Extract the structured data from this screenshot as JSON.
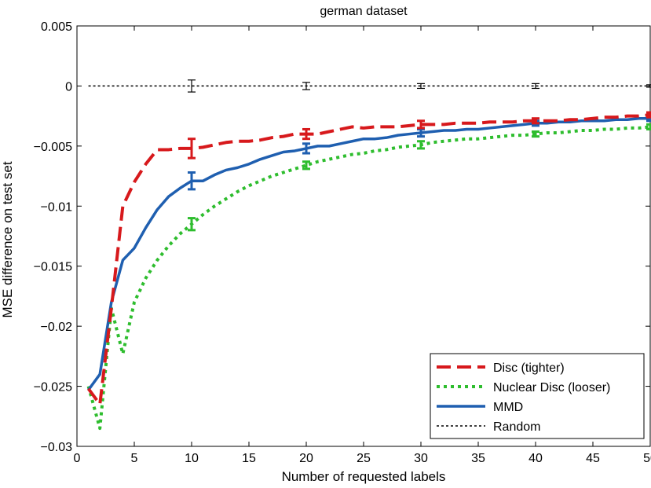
{
  "chart_data": {
    "type": "line",
    "title": "german dataset",
    "xlabel": "Number of requested labels",
    "ylabel": "MSE difference on test set",
    "xlim": [
      0,
      50
    ],
    "ylim": [
      -0.03,
      0.005
    ],
    "xticks": [
      0,
      5,
      10,
      15,
      20,
      25,
      30,
      35,
      40,
      45,
      50
    ],
    "xtick_labels": [
      "0",
      "5",
      "10",
      "15",
      "20",
      "25",
      "30",
      "35",
      "40",
      "45",
      "50"
    ],
    "yticks": [
      0.005,
      0,
      -0.005,
      -0.01,
      -0.015,
      -0.02,
      -0.025,
      -0.03
    ],
    "ytick_labels": [
      "0.005",
      "0",
      "−0.005",
      "−0.01",
      "−0.015",
      "−0.02",
      "−0.025",
      "−0.03"
    ],
    "grid": false,
    "legend_position": "bottom-right",
    "series": [
      {
        "name": "Disc (tighter)",
        "color": "#d7191c",
        "dash": "dashed",
        "x": [
          1,
          2,
          3,
          4,
          5,
          6,
          7,
          8,
          9,
          10,
          11,
          12,
          13,
          14,
          15,
          16,
          17,
          18,
          19,
          20,
          21,
          22,
          23,
          24,
          25,
          26,
          27,
          28,
          29,
          30,
          31,
          32,
          33,
          34,
          35,
          36,
          37,
          38,
          39,
          40,
          41,
          42,
          43,
          44,
          45,
          46,
          47,
          48,
          49,
          50
        ],
        "y": [
          -0.0252,
          -0.0265,
          -0.0185,
          -0.01,
          -0.008,
          -0.0065,
          -0.0053,
          -0.0053,
          -0.0052,
          -0.0052,
          -0.0051,
          -0.0049,
          -0.0047,
          -0.0046,
          -0.0046,
          -0.0045,
          -0.0043,
          -0.0042,
          -0.004,
          -0.004,
          -0.004,
          -0.0038,
          -0.0036,
          -0.0034,
          -0.0035,
          -0.0034,
          -0.0034,
          -0.0034,
          -0.0033,
          -0.0032,
          -0.0032,
          -0.0032,
          -0.0031,
          -0.0031,
          -0.0031,
          -0.003,
          -0.003,
          -0.003,
          -0.0029,
          -0.0029,
          -0.0029,
          -0.0029,
          -0.0028,
          -0.0028,
          -0.0027,
          -0.0026,
          -0.0026,
          -0.0025,
          -0.0025,
          -0.0024
        ],
        "errorbars": [
          {
            "x": 10,
            "y": -0.0052,
            "err": 0.0008
          },
          {
            "x": 20,
            "y": -0.004,
            "err": 0.0004
          },
          {
            "x": 30,
            "y": -0.0032,
            "err": 0.0003
          },
          {
            "x": 40,
            "y": -0.0029,
            "err": 0.0002
          },
          {
            "x": 50,
            "y": -0.0024,
            "err": 0.0002
          }
        ]
      },
      {
        "name": "Nuclear Disc (looser)",
        "color": "#2ebd2e",
        "dash": "dotted",
        "x": [
          1,
          2,
          3,
          4,
          5,
          6,
          7,
          8,
          9,
          10,
          11,
          12,
          13,
          14,
          15,
          16,
          17,
          18,
          19,
          20,
          21,
          22,
          23,
          24,
          25,
          26,
          27,
          28,
          29,
          30,
          31,
          32,
          33,
          34,
          35,
          36,
          37,
          38,
          39,
          40,
          41,
          42,
          43,
          44,
          45,
          46,
          47,
          48,
          49,
          50
        ],
        "y": [
          -0.025,
          -0.0285,
          -0.0185,
          -0.0223,
          -0.018,
          -0.016,
          -0.0145,
          -0.0133,
          -0.0123,
          -0.0115,
          -0.0107,
          -0.01,
          -0.0094,
          -0.0088,
          -0.0083,
          -0.0079,
          -0.0075,
          -0.0072,
          -0.0069,
          -0.0066,
          -0.0063,
          -0.0061,
          -0.0059,
          -0.0057,
          -0.0056,
          -0.0054,
          -0.0053,
          -0.0051,
          -0.005,
          -0.0049,
          -0.0047,
          -0.0046,
          -0.0045,
          -0.0044,
          -0.0044,
          -0.0043,
          -0.0042,
          -0.0041,
          -0.0041,
          -0.004,
          -0.0039,
          -0.0039,
          -0.0038,
          -0.0037,
          -0.0037,
          -0.0036,
          -0.0036,
          -0.0035,
          -0.0035,
          -0.0034
        ],
        "errorbars": [
          {
            "x": 10,
            "y": -0.0115,
            "err": 0.0005
          },
          {
            "x": 20,
            "y": -0.0066,
            "err": 0.0003
          },
          {
            "x": 30,
            "y": -0.0049,
            "err": 0.0003
          },
          {
            "x": 40,
            "y": -0.004,
            "err": 0.0002
          },
          {
            "x": 50,
            "y": -0.0034,
            "err": 0.0002
          }
        ]
      },
      {
        "name": "MMD",
        "color": "#1f5fb0",
        "dash": "solid",
        "x": [
          1,
          2,
          3,
          4,
          5,
          6,
          7,
          8,
          9,
          10,
          11,
          12,
          13,
          14,
          15,
          16,
          17,
          18,
          19,
          20,
          21,
          22,
          23,
          24,
          25,
          26,
          27,
          28,
          29,
          30,
          31,
          32,
          33,
          34,
          35,
          36,
          37,
          38,
          39,
          40,
          41,
          42,
          43,
          44,
          45,
          46,
          47,
          48,
          49,
          50
        ],
        "y": [
          -0.0253,
          -0.024,
          -0.018,
          -0.0145,
          -0.0135,
          -0.0118,
          -0.0103,
          -0.0092,
          -0.0085,
          -0.0079,
          -0.0079,
          -0.0074,
          -0.007,
          -0.0068,
          -0.0065,
          -0.0061,
          -0.0058,
          -0.0055,
          -0.0054,
          -0.0052,
          -0.005,
          -0.005,
          -0.0048,
          -0.0046,
          -0.0044,
          -0.0044,
          -0.0043,
          -0.0041,
          -0.004,
          -0.0039,
          -0.0038,
          -0.0037,
          -0.0037,
          -0.0036,
          -0.0036,
          -0.0035,
          -0.0034,
          -0.0033,
          -0.0032,
          -0.0031,
          -0.0031,
          -0.003,
          -0.003,
          -0.0029,
          -0.0029,
          -0.0029,
          -0.0028,
          -0.0028,
          -0.0027,
          -0.0027
        ],
        "errorbars": [
          {
            "x": 10,
            "y": -0.0079,
            "err": 0.0007
          },
          {
            "x": 20,
            "y": -0.0052,
            "err": 0.0004
          },
          {
            "x": 30,
            "y": -0.0039,
            "err": 0.0003
          },
          {
            "x": 40,
            "y": -0.0031,
            "err": 0.0002
          },
          {
            "x": 50,
            "y": -0.0027,
            "err": 0.0002
          }
        ]
      },
      {
        "name": "Random",
        "color": "#000000",
        "dash": "dotted-fine",
        "x": [
          1,
          50
        ],
        "y": [
          0,
          0
        ],
        "errorbars": [
          {
            "x": 10,
            "y": 0,
            "err": 0.0005
          },
          {
            "x": 20,
            "y": 0,
            "err": 0.0003
          },
          {
            "x": 30,
            "y": 0,
            "err": 0.0002
          },
          {
            "x": 40,
            "y": 0,
            "err": 0.0002
          },
          {
            "x": 50,
            "y": 0,
            "err": 0.0001
          }
        ]
      }
    ]
  }
}
